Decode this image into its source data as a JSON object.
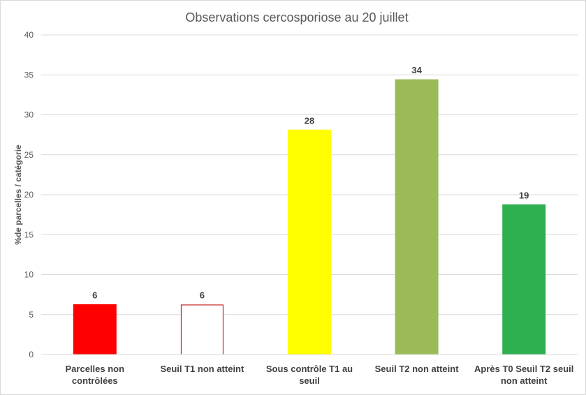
{
  "chart_data": {
    "type": "bar",
    "title": "Observations cercosporiose au 20 juillet",
    "ylabel": "%de parcelles / catégorie",
    "xlabel": "",
    "ylim": [
      0,
      40
    ],
    "yticks": [
      0,
      5,
      10,
      15,
      20,
      25,
      30,
      35,
      40
    ],
    "grid": true,
    "legend": "none",
    "categories": [
      [
        "Parcelles non",
        "contrôlées"
      ],
      [
        "Seuil T1 non atteint"
      ],
      [
        "Sous contrôle T1 au",
        "seuil"
      ],
      [
        "Seuil T2 non atteint"
      ],
      [
        "Après T0 Seuil T2 seuil",
        "non atteint"
      ]
    ],
    "values": [
      6.25,
      6.25,
      28.1,
      34.4,
      18.75
    ],
    "data_labels": [
      "6",
      "6",
      "28",
      "34",
      "19"
    ],
    "bar_fills": [
      "#ff0000",
      "#ffffff",
      "#ffff00",
      "#9bbb59",
      "#2fb050"
    ],
    "bar_strokes": [
      "#ff0000",
      "#c00000",
      "#ffff00",
      "#9bbb59",
      "#2fb050"
    ]
  }
}
